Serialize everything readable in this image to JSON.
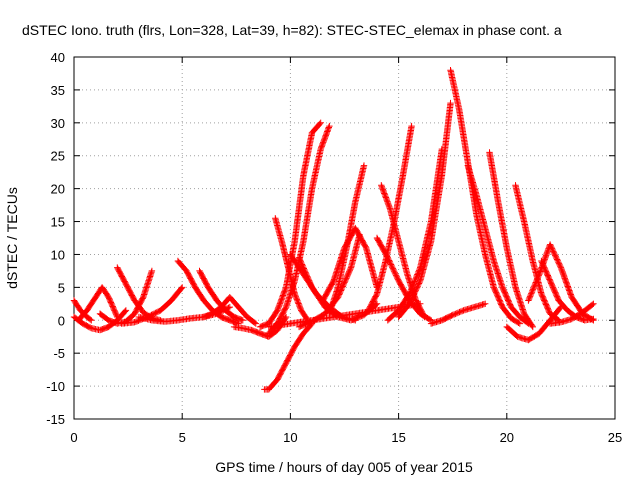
{
  "chart_data": {
    "type": "scatter",
    "title": "dSTEC Iono. truth (flrs, Lon=328, Lat=39, h=82): STEC-STEC_elemax in phase cont. a",
    "xlabel": "GPS time / hours of day 005 of year 2015",
    "ylabel": "dSTEC  / TECUs",
    "xlim": [
      0,
      25
    ],
    "ylim": [
      -15,
      40
    ],
    "x_ticks": [
      0,
      5,
      10,
      15,
      20,
      25
    ],
    "y_ticks": [
      -15,
      -10,
      -5,
      0,
      5,
      10,
      15,
      20,
      25,
      30,
      35,
      40
    ],
    "x_tick_labels": [
      "0",
      "5",
      "10",
      "15",
      "20",
      "25"
    ],
    "y_tick_labels": [
      "-15",
      "-10",
      "-5",
      "0",
      "5",
      "10",
      "15",
      "20",
      "25",
      "30",
      "35",
      "40"
    ],
    "grid": true,
    "marker": "+",
    "color": "#ff0000",
    "series": [
      {
        "x": [
          0.0,
          0.3,
          0.6,
          0.8
        ],
        "y": [
          3.0,
          1.5,
          0.5,
          0.0
        ]
      },
      {
        "x": [
          0.0,
          0.4,
          0.8,
          1.2,
          1.6,
          2.0,
          2.4
        ],
        "y": [
          0.5,
          -0.5,
          -1.2,
          -1.5,
          -1.0,
          0.0,
          1.5
        ]
      },
      {
        "x": [
          0.2,
          0.6,
          1.0,
          1.3,
          1.6,
          2.0
        ],
        "y": [
          0.0,
          1.5,
          3.5,
          5.0,
          3.5,
          0.5
        ]
      },
      {
        "x": [
          1.2,
          1.6,
          2.0,
          2.4,
          2.8,
          3.2,
          3.6
        ],
        "y": [
          1.0,
          0.0,
          -0.5,
          -0.2,
          1.0,
          3.5,
          7.5
        ]
      },
      {
        "x": [
          2.0,
          2.4,
          2.8,
          3.2,
          3.6,
          4.0
        ],
        "y": [
          8.0,
          5.5,
          3.0,
          1.2,
          0.3,
          0.0
        ]
      },
      {
        "x": [
          2.2,
          2.8,
          3.4,
          4.0,
          4.5,
          5.0
        ],
        "y": [
          -0.5,
          -0.3,
          0.5,
          1.5,
          3.0,
          5.0
        ]
      },
      {
        "x": [
          3.0,
          3.6,
          4.2,
          4.8,
          5.4,
          6.0,
          6.6,
          7.2
        ],
        "y": [
          0.5,
          0.0,
          -0.2,
          0.0,
          0.3,
          0.5,
          1.0,
          2.0
        ]
      },
      {
        "x": [
          4.8,
          5.2,
          5.6,
          6.0,
          6.4,
          6.8,
          7.2,
          7.6
        ],
        "y": [
          9.0,
          7.5,
          5.0,
          3.0,
          1.5,
          0.5,
          0.0,
          -0.5
        ]
      },
      {
        "x": [
          5.8,
          6.2,
          6.6,
          7.0,
          7.4,
          7.8
        ],
        "y": [
          7.5,
          5.0,
          3.0,
          1.5,
          0.5,
          0.0
        ]
      },
      {
        "x": [
          6.0,
          6.4,
          6.8,
          7.2,
          7.6,
          8.0,
          8.4
        ],
        "y": [
          0.5,
          1.0,
          2.0,
          3.5,
          2.0,
          0.5,
          -0.5
        ]
      },
      {
        "x": [
          7.4,
          7.8,
          8.2,
          8.6,
          9.0,
          9.4,
          9.8
        ],
        "y": [
          -1.0,
          -1.2,
          -1.5,
          -2.0,
          -2.5,
          -1.5,
          0.5
        ]
      },
      {
        "x": [
          8.8,
          9.0,
          9.4,
          9.8,
          10.2,
          10.6,
          11.0
        ],
        "y": [
          -10.5,
          -10.5,
          -9.0,
          -6.5,
          -4.0,
          -2.0,
          -0.5
        ]
      },
      {
        "x": [
          8.6,
          9.0,
          9.4,
          9.8,
          10.2,
          10.6,
          11.0,
          11.4
        ],
        "y": [
          -1.0,
          -0.5,
          1.5,
          5.0,
          12.0,
          22.0,
          28.5,
          30.0
        ]
      },
      {
        "x": [
          9.0,
          9.4,
          9.8,
          10.2,
          10.6,
          11.0,
          11.4,
          11.8
        ],
        "y": [
          -2.0,
          -0.5,
          2.0,
          6.0,
          12.0,
          20.0,
          26.0,
          29.5
        ]
      },
      {
        "x": [
          9.3,
          9.6,
          9.9,
          10.2,
          10.5,
          10.8
        ],
        "y": [
          15.5,
          12.0,
          8.0,
          4.0,
          1.5,
          0.0
        ]
      },
      {
        "x": [
          10.0,
          10.6,
          11.2,
          11.8,
          12.4,
          13.0
        ],
        "y": [
          10.0,
          7.0,
          4.0,
          2.0,
          0.5,
          0.0
        ]
      },
      {
        "x": [
          10.4,
          11.0,
          11.6,
          12.2,
          12.8,
          13.4,
          14.0
        ],
        "y": [
          9.5,
          5.0,
          2.0,
          0.5,
          0.0,
          0.8,
          2.5
        ]
      },
      {
        "x": [
          9.0,
          10.0,
          11.0,
          12.0,
          13.0,
          14.0,
          15.0,
          16.0
        ],
        "y": [
          -1.0,
          -0.5,
          0.0,
          0.5,
          1.0,
          1.5,
          2.0,
          2.5
        ]
      },
      {
        "x": [
          11.5,
          12.0,
          12.5,
          13.0,
          13.5,
          14.0
        ],
        "y": [
          3.0,
          6.0,
          11.0,
          14.0,
          11.0,
          5.0
        ]
      },
      {
        "x": [
          11.8,
          12.2,
          12.6,
          13.0,
          13.4
        ],
        "y": [
          1.0,
          5.0,
          11.0,
          18.0,
          23.5
        ]
      },
      {
        "x": [
          10.4,
          11.0,
          11.6,
          12.2,
          12.8,
          13.2
        ],
        "y": [
          -1.0,
          -0.2,
          1.0,
          3.5,
          8.0,
          13.0
        ]
      },
      {
        "x": [
          13.6,
          14.0,
          14.4,
          14.8,
          15.2,
          15.6
        ],
        "y": [
          1.5,
          4.0,
          9.0,
          15.0,
          22.0,
          29.5
        ]
      },
      {
        "x": [
          14.2,
          14.6,
          15.0,
          15.4,
          15.8,
          16.2
        ],
        "y": [
          20.5,
          17.0,
          12.0,
          7.0,
          3.0,
          0.5
        ]
      },
      {
        "x": [
          14.0,
          14.5,
          15.0,
          15.5,
          16.0,
          16.5
        ],
        "y": [
          12.5,
          9.5,
          6.0,
          3.0,
          1.0,
          0.0
        ]
      },
      {
        "x": [
          14.5,
          15.0,
          15.5,
          16.0,
          16.5,
          17.0
        ],
        "y": [
          0.0,
          1.5,
          4.0,
          8.0,
          15.0,
          26.0
        ]
      },
      {
        "x": [
          15.0,
          15.5,
          16.0,
          16.5,
          17.0,
          17.4
        ],
        "y": [
          0.5,
          2.5,
          6.0,
          12.0,
          22.0,
          33.0
        ]
      },
      {
        "x": [
          16.5,
          17.0,
          17.5,
          18.0,
          18.5,
          19.0
        ],
        "y": [
          -0.5,
          0.0,
          0.8,
          1.5,
          2.0,
          2.5
        ]
      },
      {
        "x": [
          17.4,
          17.8,
          18.2,
          18.6,
          19.0,
          19.4,
          19.8,
          20.2,
          20.6
        ],
        "y": [
          38.0,
          32.0,
          24.0,
          16.0,
          10.0,
          5.0,
          2.0,
          0.3,
          -0.5
        ]
      },
      {
        "x": [
          18.2,
          18.6,
          19.0,
          19.4,
          19.8,
          20.2,
          20.6,
          21.0
        ],
        "y": [
          23.5,
          19.0,
          14.0,
          9.0,
          5.0,
          2.0,
          0.5,
          -0.5
        ]
      },
      {
        "x": [
          19.2,
          19.6,
          20.0,
          20.4,
          20.8,
          21.2
        ],
        "y": [
          25.5,
          18.0,
          11.0,
          5.0,
          1.0,
          -1.0
        ]
      },
      {
        "x": [
          20.0,
          20.5,
          21.0,
          21.5,
          22.0,
          22.5
        ],
        "y": [
          -1.0,
          -2.5,
          -3.0,
          -2.0,
          0.0,
          2.0
        ]
      },
      {
        "x": [
          20.4,
          20.8,
          21.2,
          21.6,
          22.0,
          22.4
        ],
        "y": [
          20.5,
          15.0,
          9.0,
          4.0,
          1.0,
          0.0
        ]
      },
      {
        "x": [
          21.0,
          21.5,
          22.0,
          22.5,
          23.0,
          23.5,
          24.0
        ],
        "y": [
          3.0,
          7.0,
          11.5,
          8.0,
          3.5,
          1.0,
          0.0
        ]
      },
      {
        "x": [
          22.0,
          22.5,
          23.0,
          23.5,
          24.0
        ],
        "y": [
          -0.5,
          -0.3,
          0.2,
          1.2,
          2.5
        ]
      },
      {
        "x": [
          21.6,
          22.0,
          22.4,
          22.8,
          23.2,
          23.6,
          24.0
        ],
        "y": [
          9.0,
          6.0,
          3.0,
          1.5,
          0.5,
          0.0,
          0.2
        ]
      }
    ]
  }
}
